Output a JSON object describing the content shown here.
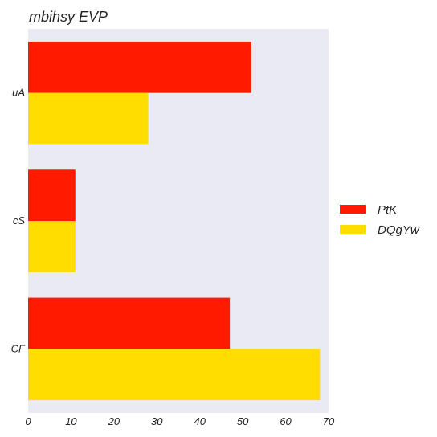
{
  "chart_data": {
    "type": "bar",
    "orientation": "horizontal",
    "title": "mbihsy EVP",
    "xlabel": "",
    "ylabel": "",
    "categories": [
      "uA",
      "cS",
      "CF"
    ],
    "series": [
      {
        "name": "PtK",
        "values": [
          52,
          11,
          47
        ],
        "color": "#ff1a00"
      },
      {
        "name": "DQgYw",
        "values": [
          28,
          11,
          68
        ],
        "color": "#ffdd00"
      }
    ],
    "xlim": [
      0,
      70
    ],
    "xticks": [
      0,
      10,
      20,
      30,
      40,
      50,
      60,
      70
    ],
    "grid": false,
    "legend": "right",
    "background": "#eaeaf2"
  }
}
